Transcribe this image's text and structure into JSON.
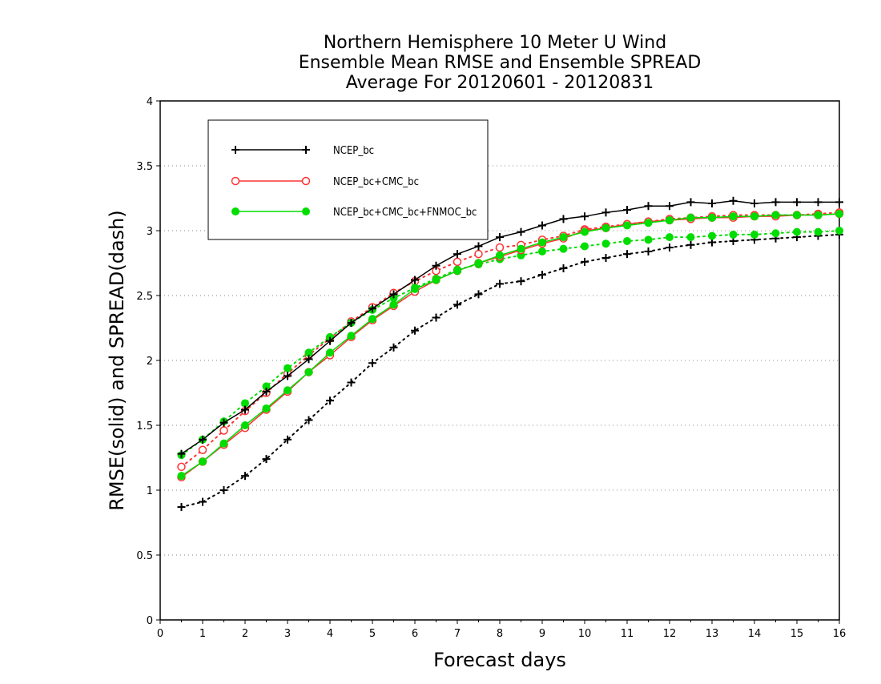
{
  "chart_data": {
    "type": "line",
    "title_lines": [
      "Northern Hemisphere 10 Meter U Wind",
      "Ensemble Mean RMSE and Ensemble SPREAD",
      "Average For 20120601 - 20120831"
    ],
    "xlabel": "Forecast days",
    "ylabel": "RMSE(solid) and SPREAD(dash)",
    "xlim": [
      0,
      16
    ],
    "ylim": [
      0,
      4
    ],
    "x_ticks": [
      "0",
      "1",
      "2",
      "3",
      "4",
      "5",
      "6",
      "7",
      "8",
      "9",
      "10",
      "11",
      "12",
      "13",
      "14",
      "15",
      "16"
    ],
    "y_ticks": [
      "0",
      "0.5",
      "1",
      "1.5",
      "2",
      "2.5",
      "3",
      "3.5",
      "4"
    ],
    "grid": "horizontal dotted",
    "legend_position": "top-left",
    "x": [
      0.5,
      1,
      1.5,
      2,
      2.5,
      3,
      3.5,
      4,
      4.5,
      5,
      5.5,
      6,
      6.5,
      7,
      7.5,
      8,
      8.5,
      9,
      9.5,
      10,
      10.5,
      11,
      11.5,
      12,
      12.5,
      13,
      13.5,
      14,
      14.5,
      15,
      15.5,
      16
    ],
    "series": [
      {
        "name": "NCEP_bc",
        "color": "#000000",
        "marker": "plus",
        "rmse": [
          1.28,
          1.39,
          1.52,
          1.62,
          1.76,
          1.88,
          2.01,
          2.15,
          2.29,
          2.4,
          2.51,
          2.62,
          2.73,
          2.82,
          2.88,
          2.95,
          2.99,
          3.04,
          3.09,
          3.11,
          3.14,
          3.16,
          3.19,
          3.19,
          3.22,
          3.21,
          3.23,
          3.21,
          3.22,
          3.22,
          3.22,
          3.22
        ],
        "spread": [
          0.87,
          0.91,
          1.0,
          1.11,
          1.24,
          1.39,
          1.54,
          1.69,
          1.83,
          1.98,
          2.1,
          2.23,
          2.33,
          2.43,
          2.51,
          2.59,
          2.61,
          2.66,
          2.71,
          2.76,
          2.79,
          2.82,
          2.84,
          2.87,
          2.89,
          2.91,
          2.92,
          2.93,
          2.94,
          2.95,
          2.96,
          2.97
        ]
      },
      {
        "name": "NCEP_bc+CMC_bc",
        "color": "#ff3333",
        "marker": "open-circle",
        "rmse": [
          1.1,
          1.22,
          1.35,
          1.48,
          1.62,
          1.76,
          1.91,
          2.04,
          2.18,
          2.31,
          2.42,
          2.53,
          2.62,
          2.69,
          2.75,
          2.8,
          2.85,
          2.9,
          2.94,
          3.0,
          3.02,
          3.05,
          3.07,
          3.08,
          3.09,
          3.1,
          3.1,
          3.11,
          3.11,
          3.12,
          3.12,
          3.13
        ],
        "spread": [
          1.18,
          1.31,
          1.46,
          1.61,
          1.75,
          1.9,
          2.04,
          2.17,
          2.3,
          2.41,
          2.52,
          2.61,
          2.69,
          2.76,
          2.82,
          2.87,
          2.89,
          2.93,
          2.96,
          3.01,
          3.03,
          3.05,
          3.07,
          3.09,
          3.1,
          3.11,
          3.12,
          3.12,
          3.12,
          3.12,
          3.13,
          3.14
        ]
      },
      {
        "name": "NCEP_bc+CMC_bc+FNMOC_bc",
        "color": "#00dd00",
        "marker": "filled-circle",
        "rmse": [
          1.11,
          1.22,
          1.36,
          1.5,
          1.63,
          1.77,
          1.91,
          2.06,
          2.19,
          2.32,
          2.43,
          2.55,
          2.62,
          2.69,
          2.75,
          2.81,
          2.86,
          2.91,
          2.95,
          2.99,
          3.02,
          3.04,
          3.06,
          3.08,
          3.1,
          3.1,
          3.11,
          3.11,
          3.12,
          3.12,
          3.12,
          3.13
        ],
        "spread": [
          1.27,
          1.39,
          1.53,
          1.67,
          1.8,
          1.94,
          2.06,
          2.18,
          2.29,
          2.39,
          2.48,
          2.56,
          2.63,
          2.7,
          2.74,
          2.78,
          2.81,
          2.84,
          2.86,
          2.88,
          2.9,
          2.92,
          2.93,
          2.95,
          2.95,
          2.96,
          2.97,
          2.97,
          2.98,
          2.99,
          2.99,
          3.0
        ]
      }
    ]
  }
}
